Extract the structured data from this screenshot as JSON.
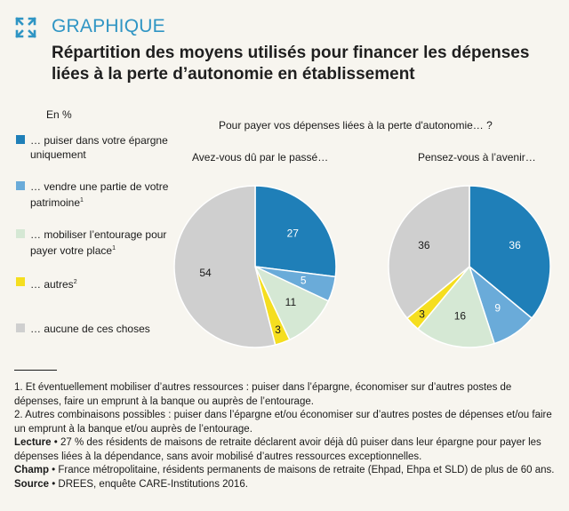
{
  "header": {
    "kicker": "GRAPHIQUE",
    "title": "Répartition des moyens utilisés pour financer les dépenses liées à la perte d’autonomie en établissement"
  },
  "unit": "En %",
  "legend": [
    {
      "label": "… puiser dans votre épargne uniquement",
      "sup": "",
      "color": "#1f7fb8"
    },
    {
      "label": "… vendre une partie de votre patrimoine",
      "sup": "1",
      "color": "#6aabd9"
    },
    {
      "label": "… mobiliser l’entourage pour payer votre place",
      "sup": "1",
      "color": "#d5e8d4"
    },
    {
      "label": "… autres",
      "sup": "2",
      "color": "#f5de1f"
    },
    {
      "label": "… aucune de ces choses",
      "sup": "",
      "color": "#cfcfcf"
    }
  ],
  "chart_data": {
    "type": "pie",
    "question": "Pour payer vos dépenses liées à la perte d'autonomie… ?",
    "categories": [
      "… puiser dans votre épargne uniquement",
      "… vendre une partie de votre patrimoine",
      "… mobiliser l’entourage pour payer votre place",
      "… autres",
      "… aucune de ces choses"
    ],
    "series": [
      {
        "name": "Avez-vous dû par le passé…",
        "values": [
          27,
          5,
          11,
          3,
          54
        ]
      },
      {
        "name": "Pensez-vous à l’avenir…",
        "values": [
          36,
          9,
          16,
          3,
          36
        ]
      }
    ],
    "colors": [
      "#1f7fb8",
      "#6aabd9",
      "#d5e8d4",
      "#f5de1f",
      "#cfcfcf"
    ]
  },
  "footer": {
    "note1": "1. Et éventuellement mobiliser d’autres ressources : puiser dans l’épargne, économiser sur d’autres postes de dépenses, faire un emprunt à la banque ou auprès de l’entourage.",
    "note2": "2. Autres combinaisons possibles : puiser dans l’épargne et/ou économiser sur d’autres postes de dépenses et/ou faire un emprunt à la banque et/ou auprès de l’entourage.",
    "lecture_label": "Lecture",
    "lecture": " • 27 % des résidents de maisons de retraite déclarent avoir déjà dû puiser dans leur épargne pour payer les dépenses liées à la dépendance, sans avoir mobilisé d’autres ressources exceptionnelles.",
    "champ_label": "Champ",
    "champ": " • France métropolitaine, résidents permanents de maisons de retraite (Ehpad, Ehpa et SLD) de plus de 60 ans.",
    "source_label": "Source",
    "source": " • DREES, enquête CARE-Institutions 2016."
  }
}
